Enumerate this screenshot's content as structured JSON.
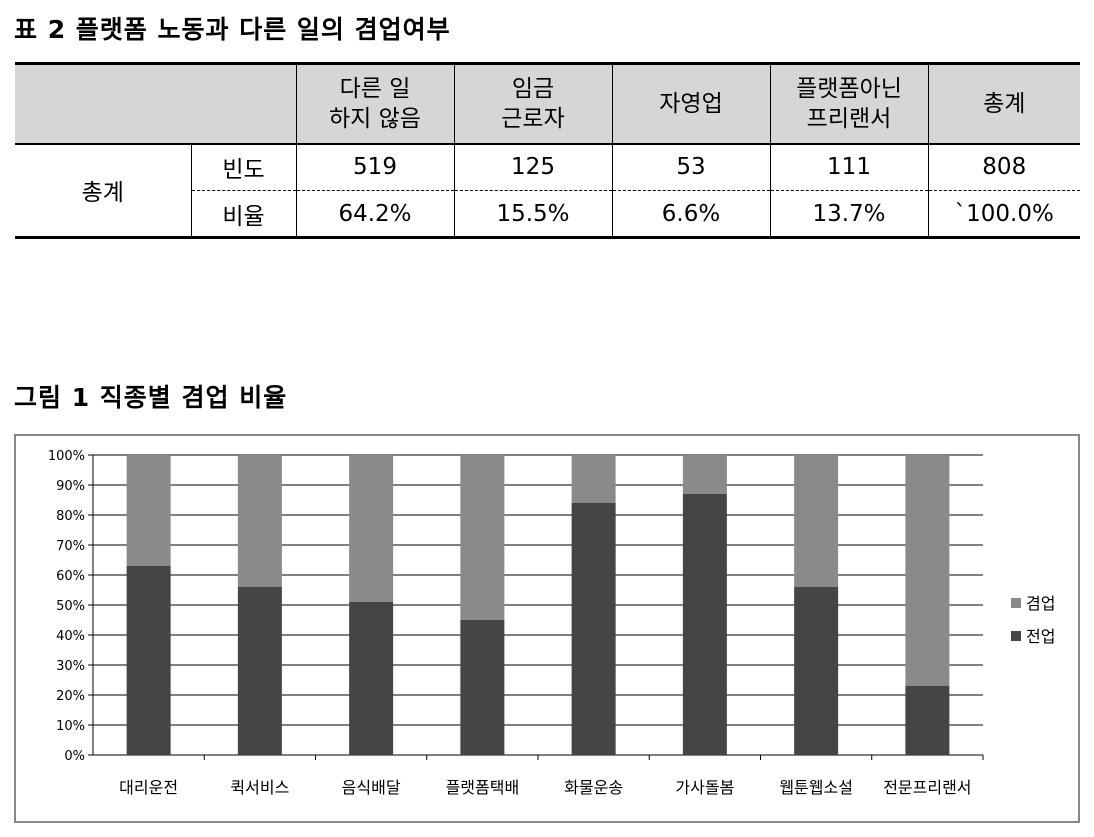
{
  "table_caption": "표 2 플랫폼 노동과 다른 일의 겸업여부",
  "table": {
    "headers": [
      "다른 일\n하지 않음",
      "임금\n근로자",
      "자영업",
      "플랫폼아닌\n프리랜서",
      "총계"
    ],
    "group_label": "총계",
    "rows": [
      {
        "label": "빈도",
        "values": [
          "519",
          "125",
          "53",
          "111",
          "808"
        ]
      },
      {
        "label": "비율",
        "values": [
          "64.2%",
          "15.5%",
          "6.6%",
          "13.7%",
          "`100.0%"
        ]
      }
    ]
  },
  "figure_caption": "그림 1 직종별 겸업 비율",
  "chart_data": {
    "type": "bar",
    "stacked": true,
    "percent": true,
    "categories": [
      "대리운전",
      "퀵서비스",
      "음식배달",
      "플랫폼택배",
      "화물운송",
      "가사돌봄",
      "웹툰웹소설",
      "전문프리랜서"
    ],
    "series": [
      {
        "name": "전업",
        "color": "#454545",
        "values": [
          63,
          56,
          51,
          45,
          84,
          87,
          56,
          23
        ]
      },
      {
        "name": "겸업",
        "color": "#8a8a8a",
        "values": [
          37,
          44,
          49,
          55,
          16,
          13,
          44,
          77
        ]
      }
    ],
    "ylim": [
      0,
      100
    ],
    "yticks": [
      "0%",
      "10%",
      "20%",
      "30%",
      "40%",
      "50%",
      "60%",
      "70%",
      "80%",
      "90%",
      "100%"
    ],
    "legend": [
      {
        "name": "겸업",
        "color": "#8a8a8a"
      },
      {
        "name": "전업",
        "color": "#454545"
      }
    ],
    "legend_position": "right",
    "grid": true
  }
}
